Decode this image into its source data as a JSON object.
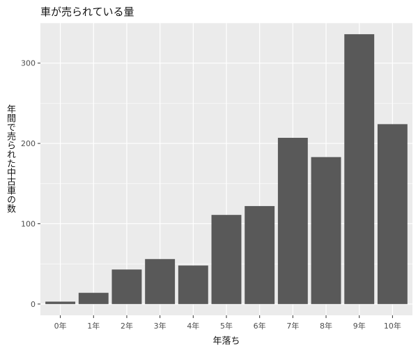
{
  "chart_data": {
    "type": "bar",
    "title": "車が売られている量",
    "xlabel": "年落ち",
    "ylabel": "年間で売られた中古車の数",
    "categories": [
      "0年",
      "1年",
      "2年",
      "3年",
      "4年",
      "5年",
      "6年",
      "7年",
      "8年",
      "9年",
      "10年"
    ],
    "values": [
      3,
      14,
      43,
      56,
      48,
      111,
      122,
      207,
      183,
      336,
      224
    ],
    "yticks": [
      0,
      100,
      200,
      300
    ],
    "ylim": [
      -14,
      350
    ],
    "grid": true,
    "colors": {
      "panel": "#ebebeb",
      "grid": "#ffffff",
      "bar": "#595959",
      "tick_text": "#4d4d4d",
      "axis_title": "#111111"
    }
  }
}
